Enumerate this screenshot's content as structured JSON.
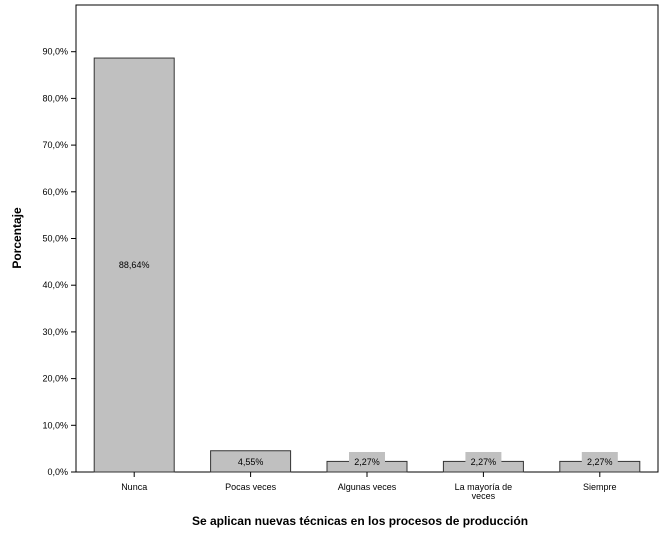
{
  "chart_data": {
    "type": "bar",
    "categories": [
      "Nunca",
      "Pocas veces",
      "Algunas veces",
      "La mayoría de veces",
      "Siempre"
    ],
    "category_lines": [
      [
        "Nunca"
      ],
      [
        "Pocas veces"
      ],
      [
        "Algunas veces"
      ],
      [
        "La mayoría de",
        "veces"
      ],
      [
        "Siempre"
      ]
    ],
    "values": [
      88.64,
      4.55,
      2.27,
      2.27,
      2.27
    ],
    "data_labels": [
      "88,64%",
      "4,55%",
      "2,27%",
      "2,27%",
      "2,27%"
    ],
    "xlabel": "Se aplican nuevas técnicas en los procesos de producción",
    "ylabel": "Porcentaje",
    "ylim": [
      0,
      100
    ],
    "yticks": [
      0,
      10,
      20,
      30,
      40,
      50,
      60,
      70,
      80,
      90
    ],
    "ytick_labels": [
      "0,0%",
      "10,0%",
      "20,0%",
      "30,0%",
      "40,0%",
      "50,0%",
      "60,0%",
      "70,0%",
      "80,0%",
      "90,0%"
    ],
    "grid": false,
    "colors": {
      "bar": "#c0c0c0",
      "bar_stroke": "#333333",
      "axis": "#000000"
    }
  }
}
